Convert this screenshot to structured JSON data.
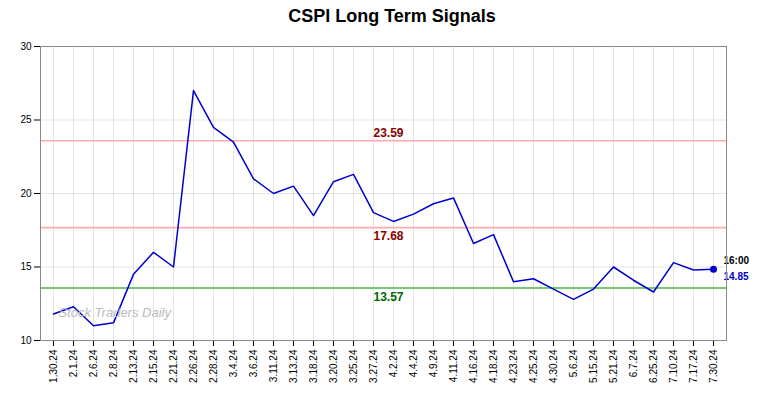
{
  "chart_data": {
    "type": "line",
    "title": "CSPI Long Term Signals",
    "categories": [
      "1.30.24",
      "2.1.24",
      "2.6.24",
      "2.8.24",
      "2.13.24",
      "2.15.24",
      "2.21.24",
      "2.26.24",
      "2.28.24",
      "3.4.24",
      "3.6.24",
      "3.11.24",
      "3.13.24",
      "3.18.24",
      "3.20.24",
      "3.25.24",
      "3.27.24",
      "4.2.24",
      "4.4.24",
      "4.9.24",
      "4.11.24",
      "4.16.24",
      "4.18.24",
      "4.23.24",
      "4.25.24",
      "4.30.24",
      "5.6.24",
      "5.15.24",
      "5.21.24",
      "6.7.24",
      "6.25.24",
      "7.10.24",
      "7.17.24",
      "7.30.24"
    ],
    "values": [
      11.8,
      12.3,
      11.0,
      11.2,
      14.5,
      16.0,
      15.0,
      27.0,
      24.5,
      23.5,
      21.0,
      20.0,
      20.5,
      18.5,
      20.8,
      21.3,
      18.7,
      18.1,
      18.6,
      19.3,
      19.7,
      16.6,
      17.2,
      14.0,
      14.2,
      13.5,
      12.8,
      13.5,
      15.0,
      14.1,
      13.3,
      15.3,
      14.8,
      14.85
    ],
    "color": "#0000cc",
    "ylim": [
      10,
      30
    ],
    "yticks": [
      10,
      15,
      20,
      25,
      30
    ],
    "grid": true,
    "reference_lines": [
      {
        "value": 23.59,
        "label": "23.59",
        "color": "#ffaaaa",
        "label_color": "#880000"
      },
      {
        "value": 17.68,
        "label": "17.68",
        "color": "#ffaaaa",
        "label_color": "#880000"
      },
      {
        "value": 13.57,
        "label": "13.57",
        "color": "#44bb44",
        "label_color": "#006600"
      }
    ],
    "last_point": {
      "label": "16:00",
      "value_label": "14.85"
    },
    "watermark": {
      "text": "Stock Traders Daily",
      "color": "#bbbbbb"
    }
  }
}
